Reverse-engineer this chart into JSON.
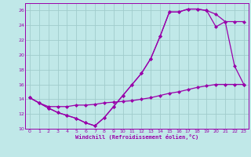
{
  "xlabel": "Windchill (Refroidissement éolien,°C)",
  "bg_color": "#c0e8e8",
  "grid_color": "#a0cccc",
  "line_color": "#9900aa",
  "marker": "D",
  "markersize": 2.0,
  "linewidth": 0.9,
  "xlim": [
    -0.5,
    23.5
  ],
  "ylim": [
    10,
    27
  ],
  "yticks": [
    10,
    12,
    14,
    16,
    18,
    20,
    22,
    24,
    26
  ],
  "xticks": [
    0,
    1,
    2,
    3,
    4,
    5,
    6,
    7,
    8,
    9,
    10,
    11,
    12,
    13,
    14,
    15,
    16,
    17,
    18,
    19,
    20,
    21,
    22,
    23
  ],
  "series1_x": [
    0,
    1,
    2,
    3,
    4,
    5,
    6,
    7,
    8,
    9,
    10,
    11,
    12,
    13,
    14,
    15,
    16,
    17,
    18,
    19,
    20,
    21,
    22,
    23
  ],
  "series1_y": [
    14.2,
    13.5,
    12.8,
    12.2,
    11.8,
    11.4,
    10.8,
    10.4,
    11.5,
    13.0,
    14.5,
    16.0,
    17.5,
    19.5,
    22.5,
    25.8,
    25.8,
    26.2,
    26.2,
    26.0,
    25.5,
    24.5,
    18.5,
    16.0
  ],
  "series2_x": [
    0,
    1,
    2,
    3,
    4,
    5,
    6,
    7,
    8,
    9,
    10,
    11,
    12,
    13,
    14,
    15,
    16,
    17,
    18,
    19,
    20,
    21,
    22,
    23
  ],
  "series2_y": [
    14.2,
    13.5,
    12.8,
    12.2,
    11.8,
    11.4,
    10.8,
    10.4,
    11.5,
    13.0,
    14.5,
    16.0,
    17.5,
    19.5,
    22.5,
    25.8,
    25.8,
    26.2,
    26.2,
    26.0,
    23.8,
    24.5,
    24.5,
    24.5
  ],
  "series3_x": [
    0,
    1,
    2,
    3,
    4,
    5,
    6,
    7,
    8,
    9,
    10,
    11,
    12,
    13,
    14,
    15,
    16,
    17,
    18,
    19,
    20,
    21,
    22,
    23
  ],
  "series3_y": [
    14.2,
    13.5,
    13.0,
    13.0,
    13.0,
    13.2,
    13.2,
    13.3,
    13.5,
    13.6,
    13.7,
    13.8,
    14.0,
    14.2,
    14.5,
    14.8,
    15.0,
    15.3,
    15.6,
    15.8,
    16.0,
    16.0,
    16.0,
    16.0
  ]
}
